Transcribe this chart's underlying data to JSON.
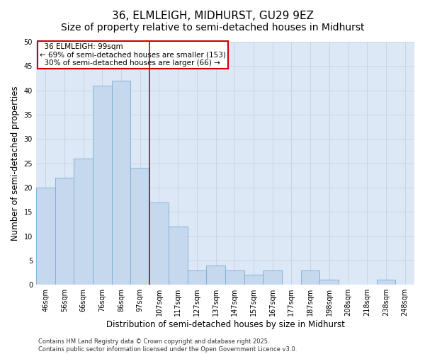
{
  "title": "36, ELMLEIGH, MIDHURST, GU29 9EZ",
  "subtitle": "Size of property relative to semi-detached houses in Midhurst",
  "xlabel": "Distribution of semi-detached houses by size in Midhurst",
  "ylabel": "Number of semi-detached properties",
  "categories": [
    "46sqm",
    "56sqm",
    "66sqm",
    "76sqm",
    "86sqm",
    "97sqm",
    "107sqm",
    "117sqm",
    "127sqm",
    "137sqm",
    "147sqm",
    "157sqm",
    "167sqm",
    "177sqm",
    "187sqm",
    "198sqm",
    "208sqm",
    "218sqm",
    "238sqm",
    "248sqm"
  ],
  "values": [
    20,
    22,
    26,
    41,
    42,
    24,
    17,
    12,
    3,
    4,
    3,
    2,
    3,
    0,
    3,
    1,
    0,
    0,
    1,
    0
  ],
  "bar_color": "#c5d8ed",
  "bar_edge_color": "#7aadd4",
  "vline_index": 5,
  "highlight_label": "36 ELMLEIGH: 99sqm",
  "pct_smaller": "69% of semi-detached houses are smaller (153)",
  "pct_larger": "30% of semi-detached houses are larger (66)",
  "vline_color": "#cc0000",
  "annotation_box_edgecolor": "#cc0000",
  "ylim": [
    0,
    50
  ],
  "yticks": [
    0,
    5,
    10,
    15,
    20,
    25,
    30,
    35,
    40,
    45,
    50
  ],
  "grid_color": "#c8d4e3",
  "bg_color": "#dce8f5",
  "footer_line1": "Contains HM Land Registry data © Crown copyright and database right 2025.",
  "footer_line2": "Contains public sector information licensed under the Open Government Licence v3.0.",
  "title_fontsize": 11,
  "tick_fontsize": 7,
  "label_fontsize": 8.5,
  "annot_fontsize": 7.5
}
